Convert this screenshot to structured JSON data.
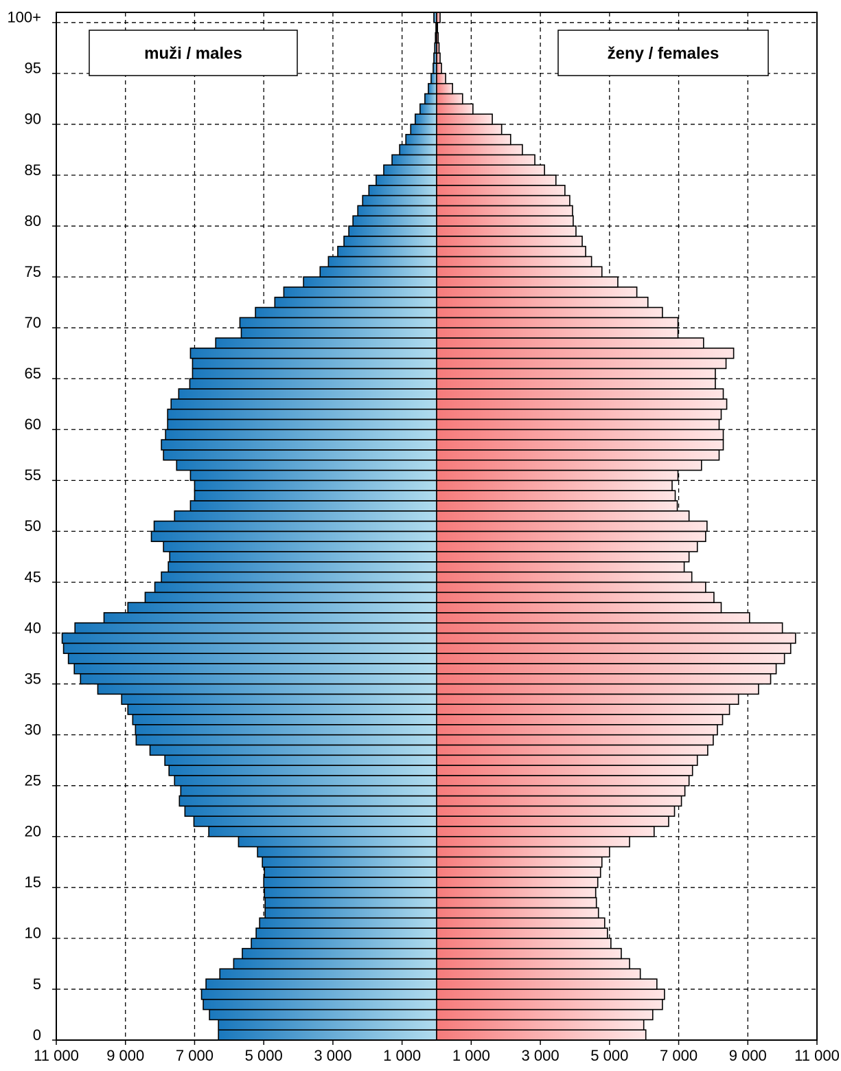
{
  "chart_data": {
    "type": "pyramid",
    "categories": [
      "0",
      null,
      null,
      null,
      null,
      "5",
      null,
      null,
      null,
      null,
      "10",
      null,
      null,
      null,
      null,
      "15",
      null,
      null,
      null,
      null,
      "20",
      null,
      null,
      null,
      null,
      "25",
      null,
      null,
      null,
      null,
      "30",
      null,
      null,
      null,
      null,
      "35",
      null,
      null,
      null,
      null,
      "40",
      null,
      null,
      null,
      null,
      "45",
      null,
      null,
      null,
      null,
      "50",
      null,
      null,
      null,
      null,
      "55",
      null,
      null,
      null,
      null,
      "60",
      null,
      null,
      null,
      null,
      "65",
      null,
      null,
      null,
      null,
      "70",
      null,
      null,
      null,
      null,
      "75",
      null,
      null,
      null,
      null,
      "80",
      null,
      null,
      null,
      null,
      "85",
      null,
      null,
      null,
      null,
      "90",
      null,
      null,
      null,
      null,
      "95",
      null,
      null,
      null,
      null,
      "100+"
    ],
    "series": [
      {
        "name": "muži / males",
        "side": "left",
        "color": "#1a78bd",
        "color_inner": "#b0dcee",
        "values": [
          6310,
          6310,
          6570,
          6750,
          6800,
          6670,
          6270,
          5870,
          5620,
          5360,
          5220,
          5120,
          4960,
          4960,
          4980,
          5000,
          4980,
          5040,
          5180,
          5730,
          6590,
          7020,
          7280,
          7440,
          7400,
          7580,
          7740,
          7860,
          8290,
          8690,
          8710,
          8790,
          8930,
          9110,
          9800,
          10300,
          10480,
          10650,
          10790,
          10830,
          10460,
          9620,
          8930,
          8430,
          8150,
          7960,
          7760,
          7720,
          7900,
          8250,
          8170,
          7580,
          7120,
          7000,
          7000,
          7120,
          7520,
          7900,
          7960,
          7840,
          7780,
          7780,
          7680,
          7460,
          7140,
          7060,
          7060,
          7120,
          6390,
          5650,
          5690,
          5240,
          4680,
          4420,
          3850,
          3370,
          3130,
          2860,
          2680,
          2540,
          2420,
          2280,
          2140,
          1960,
          1750,
          1530,
          1290,
          1070,
          890,
          750,
          620,
          480,
          340,
          240,
          160,
          100,
          80,
          55,
          35,
          20,
          80
        ]
      },
      {
        "name": "ženy / females",
        "side": "right",
        "color": "#f67b7b",
        "color_inner": "#ffe6e6",
        "values": [
          6050,
          5990,
          6250,
          6530,
          6590,
          6370,
          5890,
          5580,
          5340,
          5040,
          4940,
          4860,
          4680,
          4620,
          4600,
          4660,
          4740,
          4780,
          5000,
          5580,
          6290,
          6710,
          6880,
          7080,
          7180,
          7300,
          7400,
          7540,
          7840,
          8000,
          8120,
          8270,
          8470,
          8730,
          9310,
          9660,
          9820,
          10060,
          10240,
          10380,
          10000,
          9050,
          8230,
          8020,
          7780,
          7380,
          7160,
          7300,
          7540,
          7780,
          7820,
          7300,
          6960,
          6900,
          6810,
          6980,
          7660,
          8170,
          8290,
          8290,
          8170,
          8230,
          8390,
          8290,
          8060,
          8060,
          8370,
          8590,
          7720,
          6980,
          6980,
          6530,
          6110,
          5790,
          5240,
          4780,
          4480,
          4310,
          4210,
          4030,
          3950,
          3930,
          3850,
          3710,
          3450,
          3120,
          2840,
          2480,
          2140,
          1880,
          1610,
          1050,
          750,
          460,
          260,
          140,
          100,
          70,
          45,
          25,
          100
        ]
      }
    ],
    "xlim": [
      -11000,
      11000
    ],
    "xticks": [
      {
        "value": -11000,
        "label": "11 000"
      },
      {
        "value": -9000,
        "label": "9 000"
      },
      {
        "value": -7000,
        "label": "7 000"
      },
      {
        "value": -5000,
        "label": "5 000"
      },
      {
        "value": -3000,
        "label": "3 000"
      },
      {
        "value": -1000,
        "label": "1 000"
      },
      {
        "value": 1000,
        "label": "1 000"
      },
      {
        "value": 3000,
        "label": "3 000"
      },
      {
        "value": 5000,
        "label": "5 000"
      },
      {
        "value": 7000,
        "label": "7 000"
      },
      {
        "value": 9000,
        "label": "9 000"
      },
      {
        "value": 11000,
        "label": "11 000"
      }
    ],
    "grid": true
  }
}
